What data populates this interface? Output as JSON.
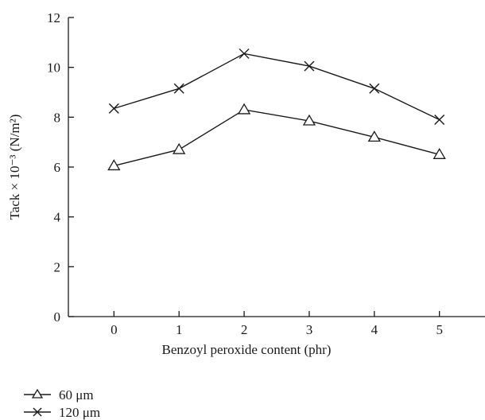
{
  "chart_data": {
    "type": "line",
    "x": [
      0,
      1,
      2,
      3,
      4,
      5
    ],
    "series": [
      {
        "name": "60 μm",
        "marker": "triangle",
        "values": [
          6.05,
          6.7,
          8.3,
          7.85,
          7.2,
          6.5
        ]
      },
      {
        "name": "120 μm",
        "marker": "cross",
        "values": [
          8.35,
          9.15,
          10.55,
          10.05,
          9.15,
          7.9
        ]
      }
    ],
    "xlabel": "Benzoyl peroxide content (phr)",
    "ylabel": "Tack × 10⁻³  (N/m²)",
    "xlim": [
      -0.7,
      5.7
    ],
    "ylim": [
      0,
      12
    ],
    "xticks": [
      0,
      1,
      2,
      3,
      4,
      5
    ],
    "yticks": [
      0,
      2,
      4,
      6,
      8,
      10,
      12
    ],
    "grid": false,
    "legend_position": "bottom-left, below plot",
    "line_color": "#1a1a1a"
  }
}
